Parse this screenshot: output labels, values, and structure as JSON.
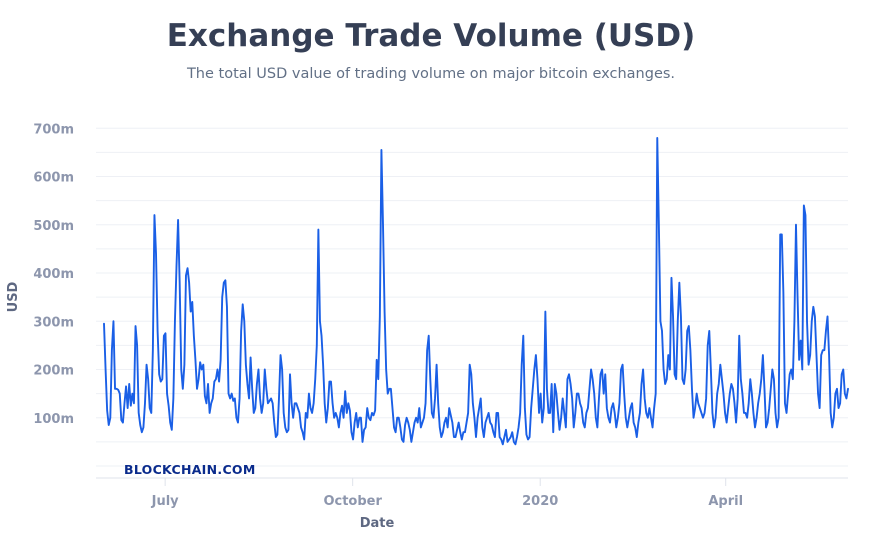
{
  "title": "Exchange Trade Volume (USD)",
  "subtitle": "The total USD value of trading volume on major bitcoin exchanges.",
  "watermark": "BLOCKCHAIN.COM",
  "colors": {
    "line": "#1a5fe6",
    "grid": "#eef0f5",
    "axis_text": "#8d96ad",
    "title": "#353f55"
  },
  "chart_data": {
    "type": "line",
    "title": "Exchange Trade Volume (USD)",
    "xlabel": "Date",
    "ylabel": "USD",
    "x_ticks": [
      "July",
      "October",
      "2020",
      "April"
    ],
    "y_ticks": [
      "100m",
      "200m",
      "300m",
      "400m",
      "500m",
      "600m",
      "700m"
    ],
    "ylim": [
      0,
      720000000
    ],
    "grid": true,
    "legend": "none",
    "x_start": "2019-06-01",
    "x_end": "2020-05-31",
    "series": [
      {
        "values": [
          295,
          200,
          115,
          85,
          100,
          240,
          300,
          160,
          160,
          158,
          150,
          95,
          90,
          130,
          165,
          120,
          170,
          125,
          150,
          130,
          290,
          250,
          110,
          85,
          70,
          80,
          130,
          210,
          180,
          120,
          110,
          240,
          520,
          440,
          280,
          190,
          175,
          180,
          270,
          275,
          150,
          125,
          90,
          75,
          140,
          300,
          415,
          510,
          380,
          200,
          160,
          210,
          395,
          410,
          380,
          320,
          340,
          270,
          220,
          160,
          180,
          215,
          200,
          210,
          145,
          130,
          170,
          110,
          130,
          140,
          175,
          180,
          200,
          175,
          220,
          350,
          380,
          385,
          330,
          150,
          140,
          150,
          135,
          140,
          100,
          90,
          140,
          280,
          335,
          300,
          210,
          170,
          140,
          225,
          160,
          110,
          120,
          170,
          200,
          140,
          110,
          130,
          200,
          160,
          130,
          135,
          140,
          130,
          90,
          60,
          65,
          140,
          230,
          200,
          110,
          80,
          70,
          75,
          190,
          130,
          100,
          130,
          130,
          120,
          110,
          80,
          70,
          55,
          110,
          100,
          150,
          120,
          110,
          130,
          180,
          250,
          490,
          300,
          270,
          210,
          130,
          90,
          120,
          175,
          175,
          130,
          100,
          110,
          100,
          80,
          110,
          125,
          100,
          155,
          110,
          130,
          115,
          70,
          55,
          90,
          110,
          80,
          100,
          100,
          50,
          75,
          80,
          120,
          100,
          95,
          110,
          105,
          115,
          220,
          180,
          310,
          655,
          500,
          320,
          200,
          150,
          160,
          160,
          120,
          80,
          70,
          100,
          100,
          80,
          55,
          50,
          85,
          100,
          90,
          75,
          50,
          70,
          90,
          100,
          90,
          120,
          80,
          90,
          100,
          130,
          240,
          270,
          180,
          110,
          100,
          140,
          210,
          130,
          80,
          60,
          70,
          90,
          100,
          80,
          120,
          105,
          90,
          60,
          60,
          75,
          90,
          70,
          55,
          70,
          70,
          90,
          110,
          210,
          190,
          130,
          100,
          60,
          100,
          120,
          140,
          80,
          60,
          90,
          100,
          110,
          90,
          85,
          70,
          60,
          110,
          110,
          60,
          55,
          45,
          60,
          75,
          50,
          55,
          60,
          70,
          50,
          45,
          60,
          80,
          110,
          210,
          270,
          120,
          65,
          55,
          60,
          120,
          160,
          200,
          230,
          180,
          110,
          150,
          90,
          120,
          320,
          160,
          110,
          110,
          170,
          70,
          170,
          150,
          110,
          75,
          100,
          140,
          110,
          80,
          180,
          190,
          170,
          140,
          80,
          110,
          150,
          150,
          130,
          120,
          90,
          80,
          110,
          120,
          160,
          200,
          180,
          150,
          100,
          80,
          140,
          190,
          200,
          150,
          190,
          120,
          100,
          90,
          120,
          130,
          110,
          80,
          100,
          130,
          200,
          210,
          150,
          100,
          80,
          100,
          120,
          130,
          90,
          80,
          60,
          90,
          110,
          170,
          200,
          140,
          110,
          100,
          120,
          100,
          80,
          120,
          150,
          680,
          500,
          300,
          280,
          200,
          170,
          180,
          230,
          200,
          390,
          310,
          190,
          180,
          300,
          380,
          310,
          180,
          170,
          200,
          280,
          290,
          240,
          160,
          100,
          120,
          150,
          130,
          120,
          110,
          100,
          110,
          140,
          250,
          280,
          200,
          110,
          80,
          100,
          150,
          170,
          210,
          180,
          150,
          110,
          90,
          120,
          150,
          170,
          160,
          130,
          90,
          140,
          270,
          180,
          150,
          110,
          110,
          100,
          130,
          180,
          150,
          110,
          80,
          100,
          130,
          150,
          180,
          230,
          160,
          80,
          90,
          120,
          160,
          200,
          180,
          110,
          80,
          100,
          480,
          480,
          360,
          130,
          110,
          150,
          190,
          200,
          180,
          300,
          500,
          350,
          220,
          260,
          200,
          540,
          520,
          300,
          210,
          230,
          300,
          330,
          310,
          230,
          150,
          120,
          230,
          240,
          240,
          280,
          310,
          230,
          110,
          80,
          100,
          150,
          160,
          120,
          130,
          190,
          200,
          150,
          140,
          160
        ]
      }
    ]
  }
}
